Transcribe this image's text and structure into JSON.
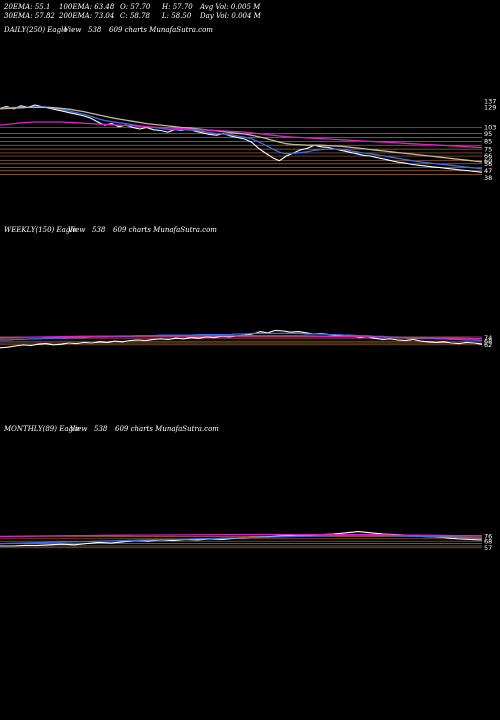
{
  "header": {
    "row1": [
      {
        "label": "20EMA: 55.1"
      },
      {
        "label": "100EMA: 63.48"
      },
      {
        "label": "O: 57.70"
      },
      {
        "label": "H: 57.70"
      },
      {
        "label": "Avg Vol: 0.005 M"
      }
    ],
    "row2": [
      {
        "label": "30EMA: 57.82"
      },
      {
        "label": "200EMA: 73.04"
      },
      {
        "label": "C: 58.78"
      },
      {
        "label": "L: 58.50"
      },
      {
        "label": "Day Vol: 0.004 M"
      }
    ]
  },
  "panels": {
    "daily": {
      "title": "DAILY(250) Eagle",
      "view": "View",
      "num": "538",
      "site": "609 charts MunafaSutra.com"
    },
    "weekly": {
      "title": "WEEKLY(150) Eagle",
      "view": "View",
      "num": "538",
      "site": "609 charts MunafaSutra.com"
    },
    "monthly": {
      "title": "MONTHLY(89) Eagle",
      "view": "View",
      "num": "538",
      "site": "609 charts MunafaSutra.com"
    }
  },
  "colors": {
    "background": "#000000",
    "price": "#ffffff",
    "ema_blue": "#3a6df0",
    "ema_magenta": "#e020c8",
    "ema_olive": "#c8b896",
    "level_lines": "#b06a3a",
    "volume": "#ffffff"
  },
  "chart_data": [
    {
      "type": "line",
      "title": "DAILY(250) Eagle",
      "ylim": [
        35,
        145
      ],
      "grid": false,
      "level_lines": [
        103,
        95,
        90,
        85,
        80,
        75,
        70,
        66,
        60,
        56,
        51,
        47,
        42
      ],
      "tick_labels": [
        "137",
        "129",
        "103",
        "95",
        "85",
        "75",
        "66",
        "60",
        "56",
        "47",
        "38"
      ],
      "series": [
        {
          "color": "#ffffff",
          "values": [
            128,
            130,
            127,
            131,
            129,
            132,
            130,
            128,
            126,
            124,
            122,
            120,
            118,
            115,
            110,
            106,
            108,
            104,
            106,
            103,
            101,
            103,
            100,
            99,
            97,
            100,
            99,
            101,
            98,
            96,
            94,
            93,
            95,
            92,
            90,
            88,
            84,
            76,
            70,
            64,
            60,
            66,
            70,
            74,
            76,
            80,
            78,
            77,
            75,
            73,
            71,
            69,
            67,
            66,
            64,
            62,
            60,
            58,
            57,
            55,
            54,
            53,
            52,
            51,
            50,
            49,
            48,
            47,
            46,
            45
          ]
        },
        {
          "color": "#3a6df0",
          "values": [
            128,
            128.5,
            129,
            129,
            129,
            129.5,
            130,
            129,
            127.5,
            126,
            124,
            122,
            120,
            117.5,
            114.5,
            112,
            110.5,
            109,
            108,
            106.5,
            105,
            104,
            103,
            102,
            100.5,
            100,
            100,
            100,
            99,
            98,
            96.5,
            95,
            94.5,
            93.5,
            92,
            90.5,
            88.5,
            84.5,
            80,
            75.5,
            71,
            69,
            69.5,
            70.5,
            71.5,
            73.5,
            74.5,
            75,
            75,
            74.5,
            73,
            71.5,
            70,
            69,
            67.5,
            66,
            64.5,
            63,
            61.5,
            60,
            58.5,
            57.5,
            56.5,
            55.5,
            54.5,
            53.5,
            52.5,
            51.5,
            50.5,
            49.5
          ]
        },
        {
          "color": "#c8b896",
          "values": [
            127,
            127.5,
            128,
            128.5,
            129,
            129,
            129,
            129,
            128.5,
            127.5,
            126.5,
            125,
            123.5,
            121.5,
            119.5,
            117.5,
            115.5,
            114,
            112.5,
            111,
            109.5,
            108,
            107,
            106,
            105,
            104,
            103,
            102.5,
            101.5,
            100.5,
            99.5,
            98.5,
            97.5,
            96.5,
            95.5,
            94.5,
            93,
            91,
            89,
            86.5,
            84,
            82,
            81,
            80.5,
            80,
            80,
            80,
            79.5,
            79,
            78.5,
            77.5,
            76.5,
            75.5,
            74.5,
            73.5,
            72.5,
            71.5,
            70.5,
            69.5,
            68.5,
            67.5,
            66.5,
            65.5,
            64.5,
            63.5,
            62.5,
            61.5,
            60.5,
            59.5,
            58.5
          ]
        },
        {
          "color": "#e020c8",
          "values": [
            106,
            107,
            108,
            109,
            109.5,
            110,
            110,
            110,
            110,
            110,
            109.5,
            109,
            108.5,
            108,
            107.5,
            107,
            106.5,
            106,
            105.5,
            105,
            104.5,
            104,
            103.5,
            103,
            102.5,
            102,
            101.5,
            101,
            100.5,
            100,
            99.5,
            99,
            98.5,
            98,
            97.5,
            97,
            96,
            95,
            94,
            93,
            92,
            91,
            90.5,
            90,
            89.5,
            89,
            88.5,
            88,
            87.5,
            87,
            86.5,
            86,
            85.5,
            85,
            84.5,
            84,
            83.5,
            83,
            82.5,
            82,
            81.5,
            81,
            80.5,
            80,
            79.5,
            79,
            78.5,
            78,
            77.5,
            77
          ]
        }
      ]
    },
    {
      "type": "line",
      "title": "WEEKLY(150) Eagle",
      "ylim": [
        20,
        120
      ],
      "grid": false,
      "level_lines": [
        75,
        72,
        68,
        65,
        62
      ],
      "tick_labels": [
        "74",
        "68",
        "62"
      ],
      "series": [
        {
          "color": "#ffffff",
          "values": [
            57,
            58,
            60,
            62,
            61,
            63,
            64,
            62,
            63,
            65,
            64,
            66,
            65,
            67,
            66,
            68,
            67,
            69,
            70,
            69,
            71,
            72,
            71,
            73,
            72,
            74,
            73,
            75,
            74,
            76,
            75,
            77,
            78,
            80,
            84,
            82,
            86,
            85,
            83,
            84,
            82,
            80,
            81,
            79,
            77,
            78,
            76,
            74,
            75,
            73,
            71,
            72,
            70,
            69,
            71,
            68,
            67,
            66,
            67,
            65,
            64,
            66,
            65,
            63
          ]
        },
        {
          "color": "#3a6df0",
          "values": [
            70,
            70,
            71,
            71,
            72,
            72,
            73,
            73,
            73,
            74,
            74,
            74,
            75,
            75,
            75,
            76,
            76,
            76,
            77,
            77,
            77,
            78,
            78,
            78,
            78,
            78,
            79,
            79,
            79,
            79,
            79,
            80,
            80,
            81,
            81,
            81,
            81,
            81,
            81,
            81,
            80,
            80,
            80,
            79,
            79,
            78,
            78,
            77,
            77,
            76,
            76,
            75,
            75,
            74,
            74,
            73,
            73,
            72,
            72,
            71,
            71,
            70,
            70,
            69
          ]
        },
        {
          "color": "#e020c8",
          "values": [
            74,
            74.2,
            74.4,
            74.6,
            74.8,
            75,
            75.2,
            75.4,
            75.6,
            75.8,
            76,
            76.1,
            76.2,
            76.3,
            76.4,
            76.5,
            76.6,
            76.7,
            76.8,
            76.9,
            77,
            77,
            77,
            77,
            77,
            77,
            77,
            77,
            77,
            77,
            77,
            77,
            77,
            77,
            77,
            77,
            77,
            77,
            77,
            77,
            76.8,
            76.6,
            76.4,
            76.2,
            76,
            75.8,
            75.6,
            75.4,
            75.2,
            75,
            74.8,
            74.6,
            74.4,
            74.2,
            74,
            73.8,
            73.6,
            73.4,
            73.2,
            73,
            72.8,
            72.6,
            72.4,
            72.2
          ]
        }
      ]
    },
    {
      "type": "line",
      "title": "MONTHLY(89) Eagle",
      "ylim": [
        20,
        120
      ],
      "grid": false,
      "level_lines": [
        76,
        72,
        68,
        64,
        60,
        57
      ],
      "tick_labels": [
        "76",
        "68",
        "57"
      ],
      "series": [
        {
          "color": "#ffffff",
          "values": [
            60,
            60,
            61,
            61,
            62,
            63,
            62,
            64,
            66,
            65,
            67,
            69,
            68,
            70,
            69,
            71,
            70,
            72,
            71,
            73,
            74,
            75,
            76,
            77,
            78,
            78,
            79,
            80,
            82,
            84,
            82,
            80,
            79,
            78,
            76,
            75,
            74,
            72,
            71,
            70
          ]
        },
        {
          "color": "#3a6df0",
          "values": [
            64,
            64.5,
            65,
            65.5,
            66,
            66.5,
            67,
            67.5,
            68,
            68.5,
            69,
            69.5,
            70,
            70.5,
            71,
            71.5,
            72,
            72.5,
            73,
            73.5,
            74,
            74.5,
            75,
            75.5,
            76,
            76.5,
            77,
            77.5,
            78,
            78,
            78,
            77.5,
            77,
            76.5,
            76,
            75.5,
            75,
            74.5,
            74,
            73.5
          ]
        },
        {
          "color": "#e020c8",
          "values": [
            76,
            76.2,
            76.4,
            76.6,
            76.8,
            77,
            77.2,
            77.4,
            77.6,
            77.8,
            78,
            78.1,
            78.2,
            78.3,
            78.4,
            78.5,
            78.6,
            78.7,
            78.8,
            78.9,
            79,
            79,
            79,
            79,
            79,
            79,
            79,
            79,
            79,
            79,
            78.8,
            78.6,
            78.4,
            78.2,
            78,
            77.8,
            77.6,
            77.4,
            77.2,
            77
          ]
        }
      ]
    }
  ]
}
